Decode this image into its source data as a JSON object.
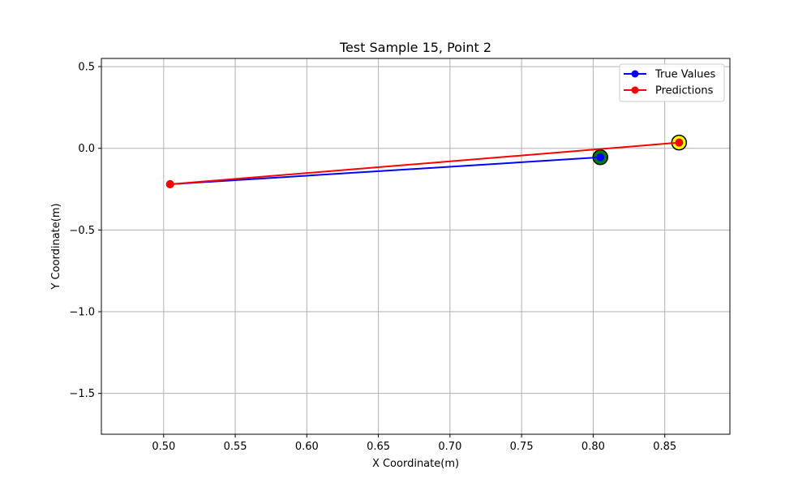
{
  "chart_data": {
    "type": "line",
    "title": "Test Sample 15, Point 2",
    "xlabel": "X Coordinate(m)",
    "ylabel": "Y Coordinate(m)",
    "xlim": [
      0.4565,
      0.8955
    ],
    "ylim": [
      -1.75,
      0.55
    ],
    "grid": true,
    "legend_position": "top-right",
    "xticks": [
      0.5,
      0.55,
      0.6,
      0.65,
      0.7,
      0.75,
      0.8,
      0.85
    ],
    "xtick_labels": [
      "0.50",
      "0.55",
      "0.60",
      "0.65",
      "0.70",
      "0.75",
      "0.80",
      "0.85"
    ],
    "yticks": [
      0.5,
      0.0,
      -0.5,
      -1.0,
      -1.5
    ],
    "ytick_labels": [
      "0.5",
      "0.0",
      "−0.5",
      "−1.0",
      "−1.5"
    ],
    "series": [
      {
        "name": "True Values",
        "color": "#0000ff",
        "marker": "circle",
        "x": [
          0.5045,
          0.805
        ],
        "y": [
          -0.22,
          -0.055
        ]
      },
      {
        "name": "Predictions",
        "color": "#ff0000",
        "marker": "circle",
        "x": [
          0.5045,
          0.86
        ],
        "y": [
          -0.22,
          0.035
        ]
      }
    ],
    "highlights": [
      {
        "name": "true-endpoint-highlight",
        "x": 0.805,
        "y": -0.055,
        "fill": "#008000",
        "stroke": "#000000"
      },
      {
        "name": "prediction-endpoint-highlight",
        "x": 0.86,
        "y": 0.035,
        "fill": "#ffff00",
        "stroke": "#000000"
      }
    ]
  }
}
